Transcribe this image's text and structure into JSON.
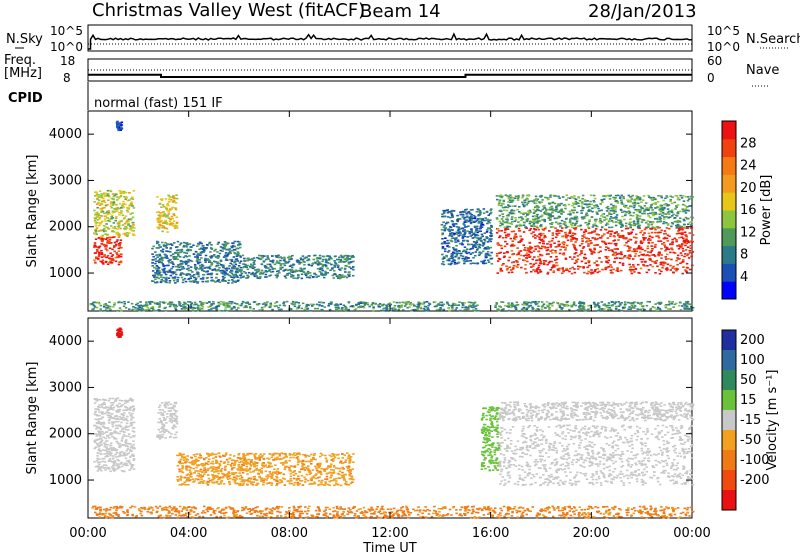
{
  "header": {
    "station": "Christmas Valley West (fitACF)",
    "beam": "Beam 14",
    "date": "28/Jan/2013"
  },
  "params": {
    "nsky_label": "N.Sky",
    "nsky_ticks": [
      "10^5",
      "10^0"
    ],
    "nsearch_label": "N.Search",
    "nsearch_ticks": [
      "10^5",
      "10^0"
    ],
    "freq_label": "Freq.",
    "freq_unit": "[MHz]",
    "freq_ticks": [
      "18",
      "8"
    ],
    "nave_label": "Nave",
    "nave_ticks": [
      "60",
      "0"
    ],
    "cpid_label": "CPID",
    "cpid_text": "normal (fast) 151 IF",
    "freq_series": [
      {
        "t": 0.0,
        "mhz": 10.8
      },
      {
        "t": 2.9,
        "mhz": 10.8
      },
      {
        "t": 2.9,
        "mhz": 9.8
      },
      {
        "t": 15.0,
        "mhz": 9.8
      },
      {
        "t": 15.0,
        "mhz": 10.8
      },
      {
        "t": 24.0,
        "mhz": 10.8
      }
    ]
  },
  "chart_data": [
    {
      "type": "heatmap",
      "name": "power",
      "ylabel": "Slant Range [km]",
      "xlabel": "Time UT",
      "x_ticks": [
        "00:00",
        "04:00",
        "08:00",
        "12:00",
        "16:00",
        "20:00",
        "00:00"
      ],
      "xlim_hours": [
        0,
        24
      ],
      "y_ticks": [
        1000,
        2000,
        3000,
        4000
      ],
      "ylim": [
        180,
        4500
      ],
      "colorbar": {
        "label": "Power [dB]",
        "ticks": [
          4,
          8,
          12,
          16,
          20,
          24,
          28
        ],
        "range": [
          0,
          32
        ],
        "colors": [
          "#0000ff",
          "#1a4fb5",
          "#2a7a8a",
          "#4f9a5a",
          "#8cc63f",
          "#e6c619",
          "#f29b1d",
          "#f57a14",
          "#f0420f",
          "#ee1111"
        ]
      },
      "regions": [
        {
          "t0": 0.2,
          "t1": 1.3,
          "r0": 1200,
          "r1": 1800,
          "value": 29
        },
        {
          "t0": 0.2,
          "t1": 1.8,
          "r0": 1800,
          "r1": 2800,
          "value": 16
        },
        {
          "t0": 2.7,
          "t1": 3.5,
          "r0": 1900,
          "r1": 2700,
          "value": 18
        },
        {
          "t0": 2.5,
          "t1": 6.0,
          "r0": 800,
          "r1": 1700,
          "value": 8
        },
        {
          "t0": 6.0,
          "t1": 10.5,
          "r0": 900,
          "r1": 1400,
          "value": 9
        },
        {
          "t0": 0.0,
          "t1": 15.5,
          "r0": 200,
          "r1": 400,
          "value": 10
        },
        {
          "t0": 14.0,
          "t1": 16.0,
          "r0": 1200,
          "r1": 2400,
          "value": 7
        },
        {
          "t0": 16.2,
          "t1": 24.0,
          "r0": 1000,
          "r1": 2000,
          "value": 29
        },
        {
          "t0": 16.2,
          "t1": 24.0,
          "r0": 2000,
          "r1": 2700,
          "value": 11
        },
        {
          "t0": 16.0,
          "t1": 24.0,
          "r0": 200,
          "r1": 400,
          "value": 10
        },
        {
          "t0": 1.1,
          "t1": 1.3,
          "r0": 4100,
          "r1": 4300,
          "value": 4
        }
      ]
    },
    {
      "type": "heatmap",
      "name": "velocity",
      "ylabel": "Slant Range [km]",
      "xlabel": "Time UT",
      "x_ticks": [
        "00:00",
        "04:00",
        "08:00",
        "12:00",
        "16:00",
        "20:00",
        "00:00"
      ],
      "xlim_hours": [
        0,
        24
      ],
      "y_ticks": [
        1000,
        2000,
        3000,
        4000
      ],
      "ylim": [
        180,
        4500
      ],
      "colorbar": {
        "label": "Velocity [m s⁻¹]",
        "ticks": [
          200,
          100,
          50,
          15,
          -15,
          -50,
          -100,
          -200
        ],
        "colors": [
          "#1f2fa0",
          "#2e6aa0",
          "#2e8a5c",
          "#6ac13a",
          "#c8c8c8",
          "#f2a020",
          "#f07a15",
          "#f04a10",
          "#e81010"
        ]
      },
      "regions": [
        {
          "t0": 0.2,
          "t1": 1.8,
          "r0": 1200,
          "r1": 2800,
          "value": 0
        },
        {
          "t0": 2.7,
          "t1": 3.5,
          "r0": 1900,
          "r1": 2700,
          "value": 0
        },
        {
          "t0": 3.5,
          "t1": 10.5,
          "r0": 900,
          "r1": 1600,
          "value": -40
        },
        {
          "t0": 15.6,
          "t1": 16.3,
          "r0": 1200,
          "r1": 2600,
          "value": 30
        },
        {
          "t0": 16.3,
          "t1": 24.0,
          "r0": 900,
          "r1": 2200,
          "value": 0
        },
        {
          "t0": 16.3,
          "t1": 24.0,
          "r0": 2300,
          "r1": 2700,
          "value": 0
        },
        {
          "t0": 0.0,
          "t1": 24.0,
          "r0": 200,
          "r1": 450,
          "value": -60
        },
        {
          "t0": 1.1,
          "t1": 1.3,
          "r0": 4100,
          "r1": 4300,
          "value": -250
        }
      ]
    }
  ]
}
